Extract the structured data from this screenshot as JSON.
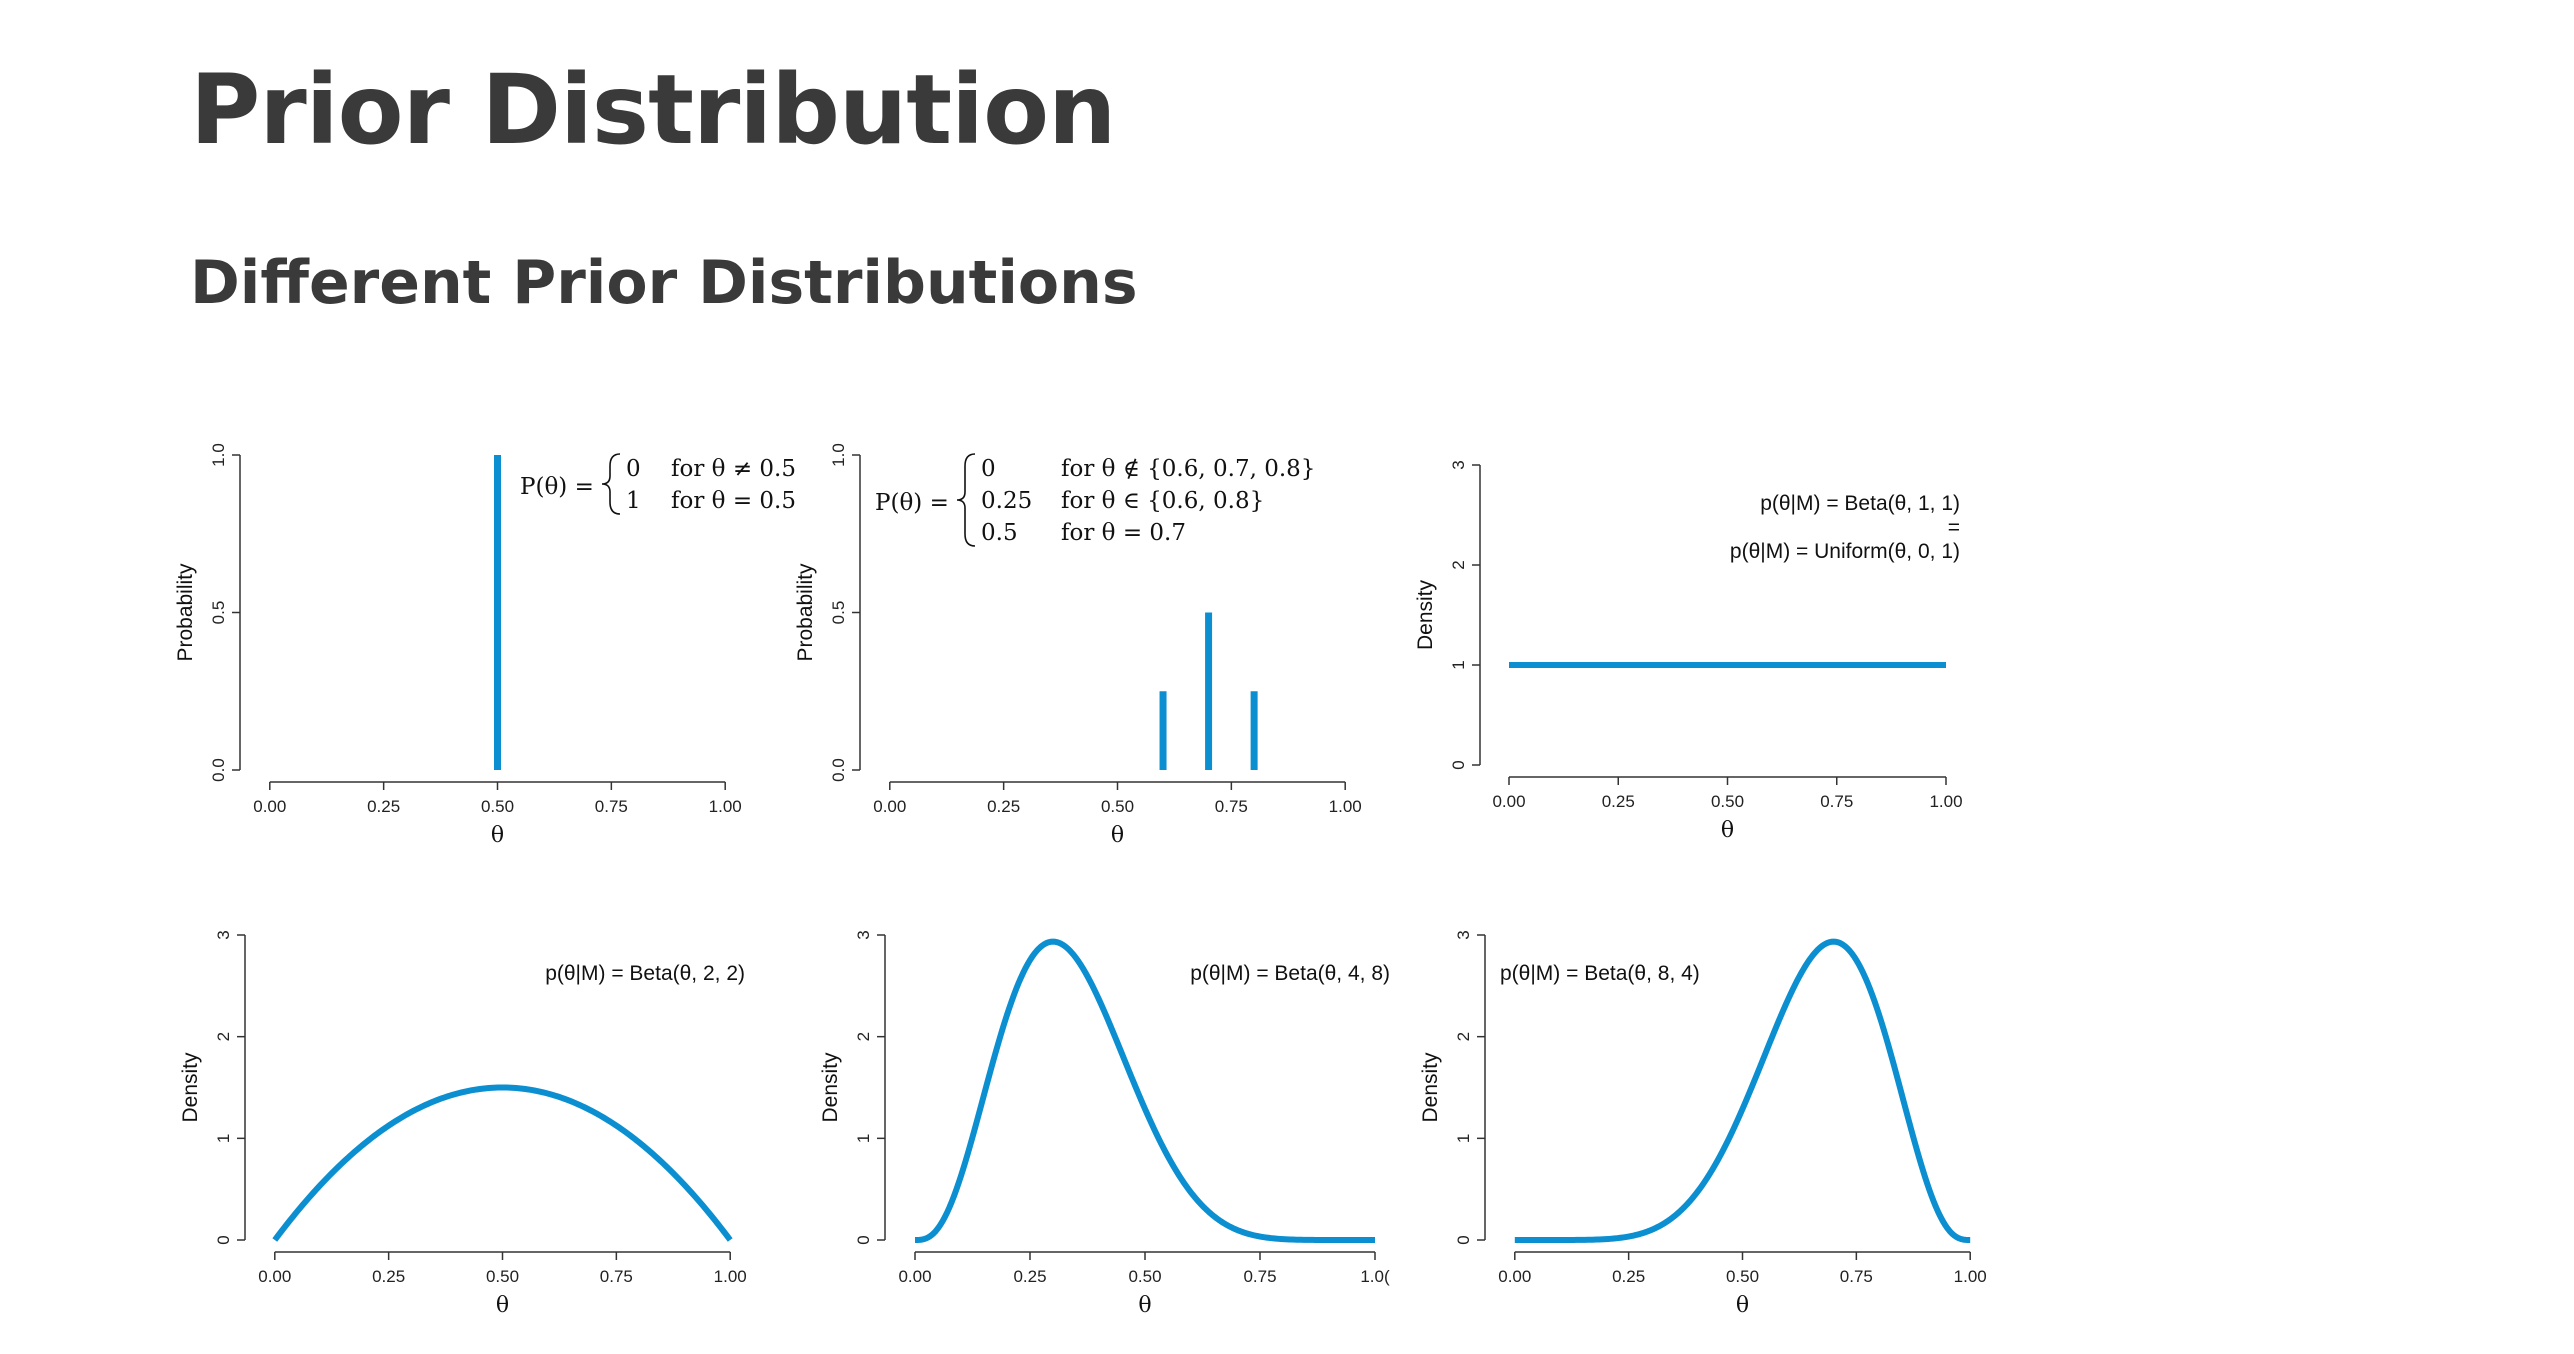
{
  "title": "Prior Distribution",
  "subtitle": "Different Prior Distributions",
  "colors": {
    "line": "#0b8fd1",
    "axis": "#333333",
    "text": "#3a3a3a"
  },
  "chart_data": [
    {
      "type": "bar",
      "title": "",
      "xlabel": "θ",
      "ylabel": "Probability",
      "xlim": [
        0,
        1
      ],
      "ylim": [
        0,
        1
      ],
      "xticks": [
        "0.00",
        "0.25",
        "0.50",
        "0.75",
        "1.00"
      ],
      "yticks": [
        "0.0",
        "0.5",
        "1.0"
      ],
      "x": [
        0.5
      ],
      "values": [
        1.0
      ],
      "annotation": {
        "lhs": "P(θ) =",
        "cases": [
          {
            "value": "0",
            "condition": "for θ ≠ 0.5"
          },
          {
            "value": "1",
            "condition": "for θ = 0.5"
          }
        ]
      }
    },
    {
      "type": "bar",
      "title": "",
      "xlabel": "θ",
      "ylabel": "Probability",
      "xlim": [
        0,
        1
      ],
      "ylim": [
        0,
        1
      ],
      "xticks": [
        "0.00",
        "0.25",
        "0.50",
        "0.75",
        "1.00"
      ],
      "yticks": [
        "0.0",
        "0.5",
        "1.0"
      ],
      "x": [
        0.6,
        0.7,
        0.8
      ],
      "values": [
        0.25,
        0.5,
        0.25
      ],
      "annotation": {
        "lhs": "P(θ) =",
        "cases": [
          {
            "value": "0",
            "condition": "for θ ∉ {0.6, 0.7, 0.8}"
          },
          {
            "value": "0.25",
            "condition": "for θ ∈ {0.6, 0.8}"
          },
          {
            "value": "0.5",
            "condition": "for θ = 0.7"
          }
        ]
      }
    },
    {
      "type": "line",
      "title": "",
      "xlabel": "θ",
      "ylabel": "Density",
      "xlim": [
        0,
        1
      ],
      "ylim": [
        0,
        3
      ],
      "xticks": [
        "0.00",
        "0.25",
        "0.50",
        "0.75",
        "1.00"
      ],
      "yticks": [
        "0",
        "1",
        "2",
        "3"
      ],
      "distribution": {
        "family": "beta",
        "a": 1,
        "b": 1
      },
      "annotation_lines": [
        "p(θ|M) = Beta(θ, 1, 1)",
        "=",
        "p(θ|M) = Uniform(θ, 0, 1)"
      ]
    },
    {
      "type": "line",
      "title": "",
      "xlabel": "θ",
      "ylabel": "Density",
      "xlim": [
        0,
        1
      ],
      "ylim": [
        0,
        3
      ],
      "xticks": [
        "0.00",
        "0.25",
        "0.50",
        "0.75",
        "1.00"
      ],
      "yticks": [
        "0",
        "1",
        "2",
        "3"
      ],
      "distribution": {
        "family": "beta",
        "a": 2,
        "b": 2
      },
      "annotation_lines": [
        "p(θ|M) = Beta(θ, 2, 2)"
      ]
    },
    {
      "type": "line",
      "title": "",
      "xlabel": "θ",
      "ylabel": "Density",
      "xlim": [
        0,
        1
      ],
      "ylim": [
        0,
        3
      ],
      "xticks": [
        "0.00",
        "0.25",
        "0.50",
        "0.75",
        "1.0("
      ],
      "yticks": [
        "0",
        "1",
        "2",
        "3"
      ],
      "distribution": {
        "family": "beta",
        "a": 4,
        "b": 8
      },
      "annotation_lines": [
        "p(θ|M) = Beta(θ, 4, 8)"
      ]
    },
    {
      "type": "line",
      "title": "",
      "xlabel": "θ",
      "ylabel": "Density",
      "xlim": [
        0,
        1
      ],
      "ylim": [
        0,
        3
      ],
      "xticks": [
        "0.00",
        "0.25",
        "0.50",
        "0.75",
        "1.00"
      ],
      "yticks": [
        "0",
        "1",
        "2",
        "3"
      ],
      "distribution": {
        "family": "beta",
        "a": 8,
        "b": 4
      },
      "annotation_lines": [
        "p(θ|M) = Beta(θ, 8, 4)"
      ]
    }
  ]
}
